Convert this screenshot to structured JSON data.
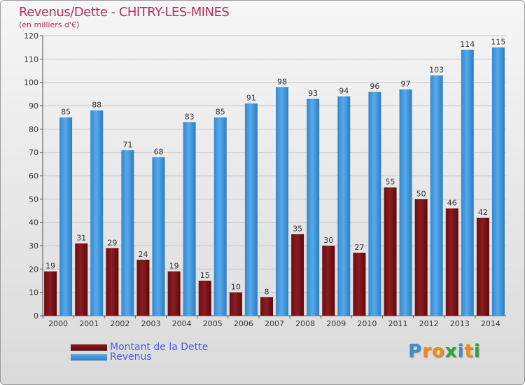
{
  "chart_data": {
    "type": "bar",
    "title": "Revenus/Dette - CHITRY-LES-MINES",
    "subtitle": "(en milliers d'€)",
    "categories": [
      "2000",
      "2001",
      "2002",
      "2003",
      "2004",
      "2005",
      "2006",
      "2007",
      "2008",
      "2009",
      "2010",
      "2011",
      "2012",
      "2013",
      "2014"
    ],
    "series": [
      {
        "name": "Montant de la Dette",
        "color": "#7a1418",
        "values": [
          19,
          31,
          29,
          24,
          19,
          15,
          10,
          8,
          35,
          30,
          27,
          55,
          50,
          46,
          42
        ]
      },
      {
        "name": "Revenus",
        "color": "#3e97dc",
        "values": [
          85,
          88,
          71,
          68,
          83,
          85,
          91,
          98,
          93,
          94,
          96,
          97,
          103,
          114,
          115
        ]
      }
    ],
    "ylim": [
      0,
      120
    ],
    "yticks": [
      0,
      10,
      20,
      30,
      40,
      50,
      60,
      70,
      80,
      90,
      100,
      110,
      120
    ],
    "grid": true,
    "legend_position": "bottom-left"
  },
  "logo": {
    "text": "Proxiti",
    "letters": [
      "P",
      "r",
      "o",
      "x",
      "i",
      "t",
      "i"
    ],
    "colors": [
      "#3d8fd0",
      "#f08a1c",
      "#f08a1c",
      "#2aa43c",
      "#3d8fd0",
      "#f08a1c",
      "#2aa43c"
    ]
  }
}
